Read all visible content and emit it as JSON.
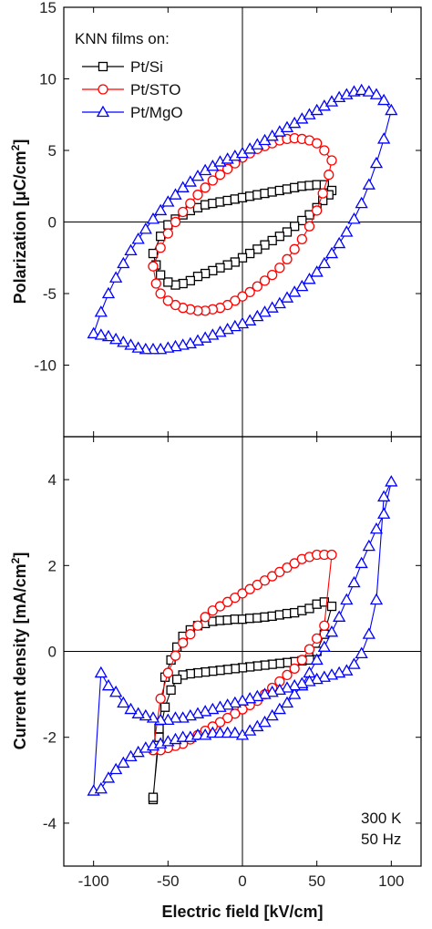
{
  "colors": {
    "Pt/Si": "#000000",
    "Pt/STO": "#ff0000",
    "Pt/MgO": "#0000ff"
  },
  "chart_data": [
    {
      "type": "line",
      "id": "polarization",
      "ylabel_main": "Polarization [",
      "ylabel_mu": "μ",
      "ylabel_unit": "C/cm",
      "ylabel_sup": "2",
      "ylabel_close": "]",
      "xlim": [
        -120,
        120
      ],
      "ylim": [
        -15,
        15
      ],
      "xticks": [
        -100,
        -50,
        0,
        50,
        100
      ],
      "yticks": [
        -10,
        -5,
        0,
        5,
        10,
        15
      ],
      "grid": false,
      "legend": {
        "title": "KNN films on:",
        "placement": "top-left",
        "entries": [
          "Pt/Si",
          "Pt/STO",
          "Pt/MgO"
        ]
      },
      "series": [
        {
          "name": "Pt/Si",
          "marker": "square",
          "x": [
            -60,
            -55,
            -50,
            -45,
            -40,
            -35,
            -30,
            -25,
            -20,
            -15,
            -10,
            -5,
            0,
            5,
            10,
            15,
            20,
            25,
            30,
            35,
            40,
            45,
            50,
            55,
            60,
            58,
            54,
            50,
            45,
            40,
            35,
            30,
            25,
            20,
            15,
            10,
            5,
            0,
            -5,
            -10,
            -15,
            -20,
            -25,
            -30,
            -35,
            -40,
            -45,
            -50,
            -55,
            -58
          ],
          "y": [
            -2.2,
            -1.0,
            -0.2,
            0.2,
            0.5,
            0.8,
            1.0,
            1.2,
            1.3,
            1.4,
            1.5,
            1.6,
            1.7,
            1.8,
            1.9,
            2.0,
            2.1,
            2.2,
            2.3,
            2.4,
            2.5,
            2.55,
            2.6,
            2.6,
            2.2,
            1.9,
            1.5,
            1.0,
            0.5,
            0.1,
            -0.3,
            -0.7,
            -1.0,
            -1.3,
            -1.6,
            -1.9,
            -2.2,
            -2.5,
            -2.8,
            -3.0,
            -3.2,
            -3.4,
            -3.6,
            -3.8,
            -4.1,
            -4.3,
            -4.4,
            -4.2,
            -3.7,
            -3.0
          ]
        },
        {
          "name": "Pt/STO",
          "marker": "circle",
          "x": [
            -60,
            -55,
            -50,
            -45,
            -40,
            -35,
            -30,
            -25,
            -20,
            -15,
            -10,
            -5,
            0,
            5,
            10,
            15,
            20,
            25,
            30,
            35,
            40,
            45,
            50,
            55,
            60,
            58,
            54,
            50,
            45,
            40,
            35,
            30,
            25,
            20,
            15,
            10,
            5,
            0,
            -5,
            -10,
            -15,
            -20,
            -25,
            -30,
            -35,
            -40,
            -45,
            -50,
            -55,
            -58
          ],
          "y": [
            -3.1,
            -1.8,
            -0.8,
            0.0,
            0.7,
            1.3,
            1.9,
            2.4,
            2.9,
            3.3,
            3.7,
            4.1,
            4.5,
            4.8,
            5.1,
            5.3,
            5.5,
            5.7,
            5.8,
            5.85,
            5.8,
            5.7,
            5.5,
            5.0,
            4.3,
            3.3,
            2.0,
            0.8,
            -0.3,
            -1.2,
            -1.9,
            -2.6,
            -3.2,
            -3.7,
            -4.1,
            -4.5,
            -4.9,
            -5.2,
            -5.5,
            -5.8,
            -6.0,
            -6.1,
            -6.2,
            -6.2,
            -6.1,
            -6.0,
            -5.8,
            -5.5,
            -5.0,
            -4.3
          ]
        },
        {
          "name": "Pt/MgO",
          "marker": "triangle",
          "x": [
            -100,
            -95,
            -90,
            -85,
            -80,
            -75,
            -70,
            -65,
            -60,
            -55,
            -50,
            -45,
            -40,
            -35,
            -30,
            -25,
            -20,
            -15,
            -10,
            -5,
            0,
            5,
            10,
            15,
            20,
            25,
            30,
            35,
            40,
            45,
            50,
            55,
            60,
            65,
            70,
            75,
            80,
            85,
            90,
            95,
            100,
            95,
            90,
            85,
            80,
            75,
            70,
            65,
            60,
            55,
            50,
            45,
            40,
            35,
            30,
            25,
            20,
            15,
            10,
            5,
            0,
            -5,
            -10,
            -15,
            -20,
            -25,
            -30,
            -35,
            -40,
            -45,
            -50,
            -55,
            -60,
            -65,
            -70,
            -75,
            -80,
            -85,
            -90,
            -95
          ],
          "y": [
            -7.8,
            -6.3,
            -5.0,
            -3.9,
            -2.9,
            -2.0,
            -1.2,
            -0.5,
            0.2,
            0.8,
            1.4,
            1.9,
            2.4,
            2.8,
            3.2,
            3.6,
            3.9,
            4.2,
            4.4,
            4.6,
            4.8,
            5.1,
            5.4,
            5.7,
            6.0,
            6.3,
            6.6,
            6.9,
            7.2,
            7.5,
            7.8,
            8.1,
            8.4,
            8.7,
            8.9,
            9.1,
            9.2,
            9.1,
            8.9,
            8.5,
            7.8,
            5.8,
            4.1,
            2.6,
            1.3,
            0.2,
            -0.7,
            -1.5,
            -2.2,
            -2.9,
            -3.5,
            -4.0,
            -4.5,
            -4.9,
            -5.3,
            -5.7,
            -6.0,
            -6.3,
            -6.6,
            -6.9,
            -7.1,
            -7.3,
            -7.5,
            -7.7,
            -7.9,
            -8.1,
            -8.3,
            -8.5,
            -8.6,
            -8.7,
            -8.8,
            -8.9,
            -8.9,
            -8.9,
            -8.8,
            -8.6,
            -8.4,
            -8.2,
            -8.0,
            -7.9
          ]
        }
      ]
    },
    {
      "type": "line",
      "id": "current-density",
      "ylabel": "Current density [mA/cm",
      "ylabel_sup": "2",
      "ylabel_close": "]",
      "xlabel": "Electric field [kV/cm]",
      "xlim": [
        -120,
        120
      ],
      "ylim": [
        -5,
        5
      ],
      "xticks": [
        -100,
        -50,
        0,
        50,
        100
      ],
      "yticks": [
        -4,
        -2,
        0,
        2,
        4
      ],
      "grid": false,
      "annotations": [
        "300 K",
        "50 Hz"
      ],
      "series": [
        {
          "name": "Pt/Si",
          "marker": "square",
          "x": [
            -60,
            -56,
            -52,
            -48,
            -44,
            -40,
            -35,
            -30,
            -25,
            -20,
            -15,
            -10,
            -5,
            0,
            5,
            10,
            15,
            20,
            25,
            30,
            35,
            40,
            45,
            50,
            55,
            60,
            55,
            50,
            45,
            40,
            35,
            30,
            25,
            20,
            15,
            10,
            5,
            0,
            -5,
            -10,
            -15,
            -20,
            -25,
            -30,
            -35,
            -40,
            -44,
            -48,
            -52,
            -56,
            -60
          ],
          "y": [
            -3.45,
            -1.8,
            -0.6,
            -0.2,
            0.1,
            0.35,
            0.5,
            0.6,
            0.65,
            0.7,
            0.72,
            0.73,
            0.75,
            0.75,
            0.77,
            0.78,
            0.8,
            0.82,
            0.85,
            0.88,
            0.9,
            0.95,
            1.0,
            1.1,
            1.15,
            1.05,
            0.4,
            0.0,
            -0.2,
            -0.22,
            -0.24,
            -0.26,
            -0.28,
            -0.3,
            -0.32,
            -0.34,
            -0.36,
            -0.38,
            -0.4,
            -0.42,
            -0.44,
            -0.46,
            -0.48,
            -0.5,
            -0.52,
            -0.55,
            -0.65,
            -0.9,
            -1.3,
            -2.0,
            -3.4
          ]
        },
        {
          "name": "Pt/STO",
          "marker": "circle",
          "x": [
            -60,
            -55,
            -50,
            -45,
            -40,
            -35,
            -30,
            -25,
            -20,
            -15,
            -10,
            -5,
            0,
            5,
            10,
            15,
            20,
            25,
            30,
            35,
            40,
            45,
            50,
            55,
            60,
            55,
            50,
            45,
            40,
            35,
            30,
            25,
            20,
            15,
            10,
            5,
            0,
            -5,
            -10,
            -15,
            -20,
            -25,
            -30,
            -35,
            -40,
            -45,
            -50,
            -55,
            -60
          ],
          "y": [
            -2.3,
            -1.1,
            -0.5,
            -0.1,
            0.2,
            0.4,
            0.6,
            0.8,
            0.95,
            1.05,
            1.15,
            1.25,
            1.35,
            1.45,
            1.55,
            1.65,
            1.75,
            1.85,
            1.95,
            2.05,
            2.15,
            2.2,
            2.25,
            2.25,
            2.25,
            0.6,
            0.3,
            0.05,
            -0.2,
            -0.4,
            -0.55,
            -0.7,
            -0.85,
            -1.0,
            -1.15,
            -1.25,
            -1.35,
            -1.45,
            -1.55,
            -1.65,
            -1.75,
            -1.85,
            -1.95,
            -2.05,
            -2.15,
            -2.2,
            -2.25,
            -2.3,
            -2.3
          ]
        },
        {
          "name": "Pt/MgO",
          "marker": "triangle",
          "x": [
            -100,
            -95,
            -90,
            -85,
            -80,
            -75,
            -70,
            -65,
            -60,
            -55,
            -50,
            -45,
            -40,
            -35,
            -30,
            -25,
            -20,
            -15,
            -10,
            -5,
            0,
            5,
            10,
            15,
            20,
            25,
            30,
            35,
            40,
            45,
            50,
            55,
            60,
            65,
            70,
            75,
            80,
            85,
            90,
            95,
            100,
            95,
            90,
            85,
            80,
            75,
            70,
            65,
            60,
            55,
            50,
            45,
            40,
            35,
            30,
            25,
            20,
            15,
            10,
            5,
            0,
            -5,
            -10,
            -15,
            -20,
            -25,
            -30,
            -35,
            -40,
            -45,
            -50,
            -55,
            -60,
            -65,
            -70,
            -75,
            -80,
            -85,
            -90,
            -95
          ],
          "y": [
            -3.25,
            -3.2,
            -2.95,
            -2.75,
            -2.6,
            -2.45,
            -2.35,
            -2.25,
            -2.2,
            -2.15,
            -2.1,
            -2.05,
            -2.0,
            -2.0,
            -1.95,
            -1.95,
            -1.9,
            -1.9,
            -1.9,
            -1.9,
            -1.95,
            -1.85,
            -1.75,
            -1.65,
            -1.5,
            -1.35,
            -1.2,
            -1.0,
            -0.8,
            -0.5,
            -0.2,
            0.1,
            0.45,
            0.8,
            1.2,
            1.6,
            2.05,
            2.45,
            2.85,
            3.2,
            3.95,
            3.6,
            1.2,
            0.4,
            -0.05,
            -0.3,
            -0.45,
            -0.5,
            -0.55,
            -0.6,
            -0.65,
            -0.7,
            -0.75,
            -0.8,
            -0.85,
            -0.9,
            -0.95,
            -1.0,
            -1.05,
            -1.1,
            -1.15,
            -1.2,
            -1.25,
            -1.3,
            -1.35,
            -1.4,
            -1.45,
            -1.5,
            -1.55,
            -1.55,
            -1.6,
            -1.6,
            -1.55,
            -1.5,
            -1.45,
            -1.35,
            -1.2,
            -0.95,
            -0.8,
            -0.5
          ]
        }
      ]
    }
  ]
}
